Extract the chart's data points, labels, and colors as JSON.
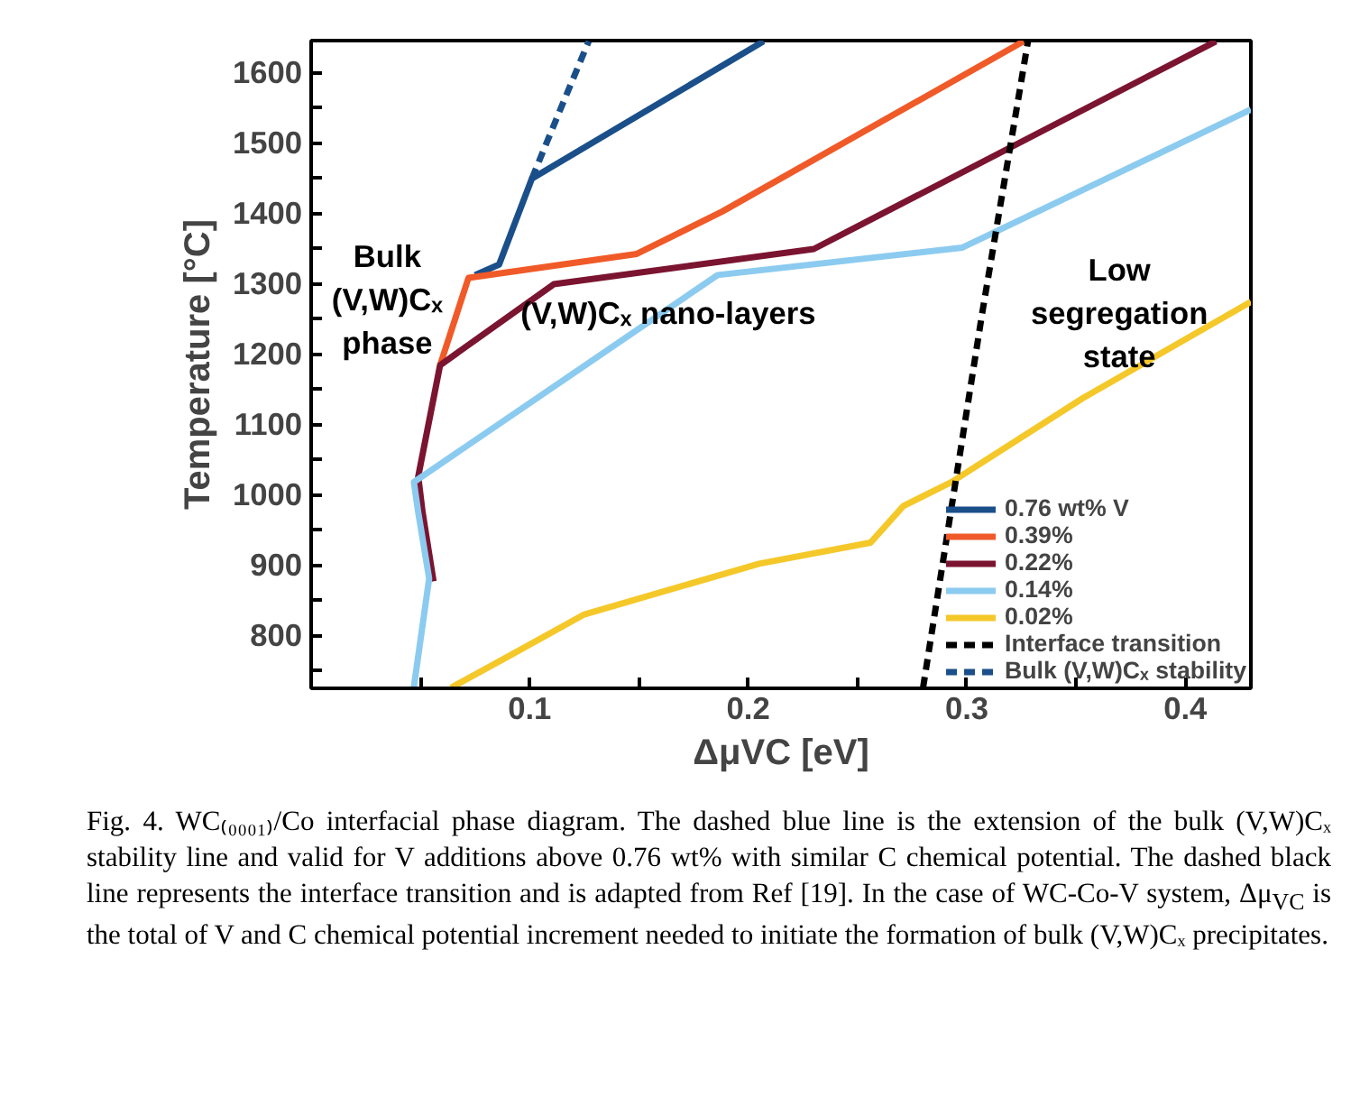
{
  "chart_data": {
    "type": "line",
    "xlabel": "ΔμVC [eV]",
    "ylabel": "Temperature [°C]",
    "xlim": [
      0,
      0.43
    ],
    "ylim": [
      725,
      1645
    ],
    "xticks": [
      {
        "value": 0.05,
        "label": null
      },
      0.1,
      {
        "value": 0.15,
        "label": null
      },
      0.2,
      {
        "value": 0.25,
        "label": null
      },
      0.3,
      {
        "value": 0.35,
        "label": null
      },
      0.4
    ],
    "yticks": [
      {
        "value": 750,
        "label": null
      },
      800,
      {
        "value": 850,
        "label": null
      },
      900,
      {
        "value": 950,
        "label": null
      },
      1000,
      {
        "value": 1050,
        "label": null
      },
      1100,
      {
        "value": 1150,
        "label": null
      },
      1200,
      {
        "value": 1250,
        "label": null
      },
      1300,
      {
        "value": 1350,
        "label": null
      },
      1400,
      {
        "value": 1450,
        "label": null
      },
      1500,
      {
        "value": 1550,
        "label": null
      },
      1600
    ],
    "grid": false,
    "legend": "bottom right",
    "marker": "none",
    "series": [
      {
        "name": "0.76 wt% V",
        "color": "#1a4f8a",
        "x": [
          0.075,
          0.086,
          0.101,
          0.207
        ],
        "values": [
          1312,
          1327,
          1449,
          1644
        ]
      },
      {
        "name": "0.39%",
        "color": "#f05a28",
        "x": [
          0.059,
          0.072,
          0.149,
          0.188,
          0.326
        ],
        "values": [
          1184,
          1308,
          1342,
          1402,
          1644
        ]
      },
      {
        "name": "0.22%",
        "color": "#7b1430",
        "x": [
          0.056,
          0.051,
          0.049,
          0.059,
          0.111,
          0.23,
          0.414
        ],
        "values": [
          877,
          975,
          1026,
          1184,
          1299,
          1349,
          1644
        ]
      },
      {
        "name": "0.14%",
        "color": "#8ccbf0",
        "x": [
          0.047,
          0.054,
          0.049,
          0.047,
          0.186,
          0.298,
          0.43
        ],
        "values": [
          727,
          881,
          975,
          1018,
          1312,
          1351,
          1547
        ]
      },
      {
        "name": "0.02%",
        "color": "#f5c82a",
        "x": [
          0.064,
          0.09,
          0.125,
          0.205,
          0.256,
          0.271,
          0.293,
          0.353,
          0.43
        ],
        "values": [
          726,
          770,
          830,
          902,
          932,
          984,
          1018,
          1137,
          1274
        ]
      },
      {
        "name": "Interface transition",
        "color": "#000000",
        "line_style": "dashed",
        "x": [
          0.28,
          0.307,
          0.328
        ],
        "values": [
          726,
          1257,
          1644
        ]
      },
      {
        "name": "Bulk (V,W)Cₓ stability",
        "color": "#1a4f8a",
        "line_style": "dashed",
        "x": [
          0.101,
          0.114,
          0.127
        ],
        "values": [
          1449,
          1547,
          1644
        ]
      }
    ],
    "annotations": [
      "Bulk\n(V,W)Cₓ\nphase",
      "(V,W)Cₓ nano-layers",
      "Low\nsegregation\nstate",
      "Fig. 4. WC₍₀₀₀₁₎/Co interfacial phase diagram. The dashed blue line is the extension of the bulk (V,W)Cₓ stability line and valid for V additions above 0.76 wt% with similar C chemical potential. The dashed black line represents the interface transition and is adapted from Ref [19]. In the case of WC-Co-V system, Δμ$_{VC}$ is the total of V and C chemical potential increment needed to initiate the formation of bulk (V,W)Cₓ precipitates."
    ]
  }
}
